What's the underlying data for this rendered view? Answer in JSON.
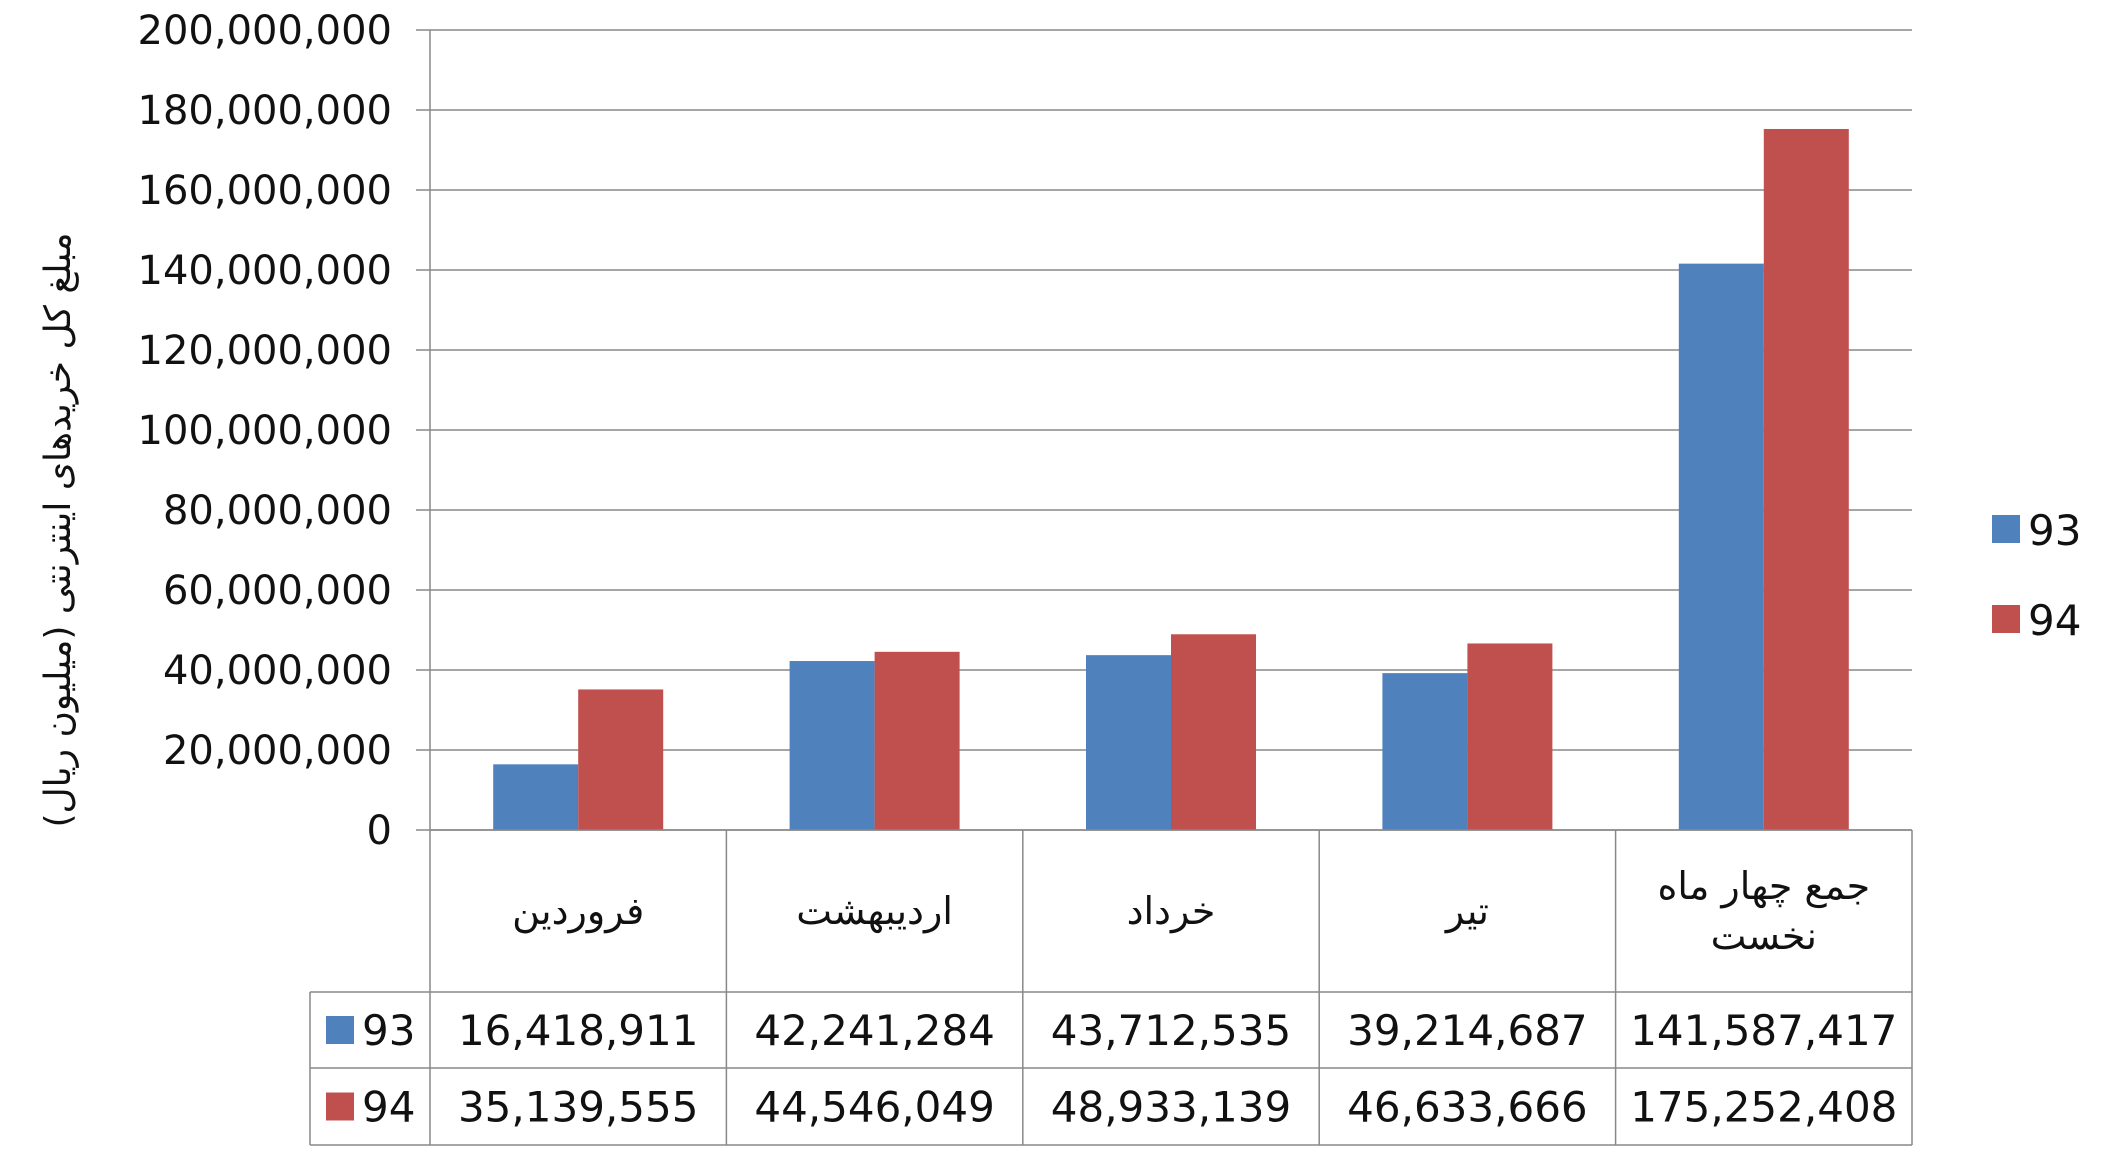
{
  "chart_data": {
    "type": "bar",
    "title": "",
    "xlabel": "",
    "ylabel": "مبلغ کل خریدهای اینترنتی (میلیون ریال)",
    "ylim": [
      0,
      200000000
    ],
    "y_ticks": [
      "0",
      "20,000,000",
      "40,000,000",
      "60,000,000",
      "80,000,000",
      "100,000,000",
      "120,000,000",
      "140,000,000",
      "160,000,000",
      "180,000,000",
      "200,000,000"
    ],
    "y_tick_values": [
      0,
      20000000,
      40000000,
      60000000,
      80000000,
      100000000,
      120000000,
      140000000,
      160000000,
      180000000,
      200000000
    ],
    "grid": true,
    "legend_position": "right",
    "categories": [
      "فروردین",
      "اردیبهشت",
      "خرداد",
      "تیر",
      "جمع چهار ماه نخست"
    ],
    "category_lines": [
      [
        "فروردین"
      ],
      [
        "اردیبهشت"
      ],
      [
        "خرداد"
      ],
      [
        "تیر"
      ],
      [
        "جمع چهار ماه",
        "نخست"
      ]
    ],
    "series": [
      {
        "name": "93",
        "color": "#4F81BD",
        "values": [
          16418911,
          42241284,
          43712535,
          39214687,
          141587417
        ],
        "labels": [
          "16,418,911",
          "42,241,284",
          "43,712,535",
          "39,214,687",
          "141,587,417"
        ]
      },
      {
        "name": "94",
        "color": "#C0504D",
        "values": [
          35139555,
          44546049,
          48933139,
          46633666,
          175252408
        ],
        "labels": [
          "35,139,555",
          "44,546,049",
          "48,933,139",
          "46,633,666",
          "175,252,408"
        ]
      }
    ]
  }
}
